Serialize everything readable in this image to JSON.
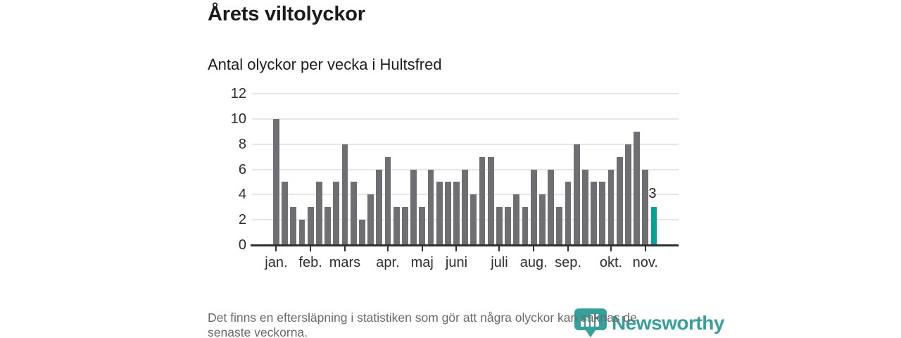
{
  "header": {
    "title": "Årets viltolyckor",
    "subtitle": "Antal olyckor per vecka i Hultsfred"
  },
  "footer": {
    "note": "Det finns en eftersläpning i statistiken som gör att några olyckor kan saknas de senaste veckorna."
  },
  "logo": {
    "name": "Newsworthy",
    "color": "#38a09c",
    "icon": "pin-with-bar-chart-icon"
  },
  "chart_data": {
    "type": "bar",
    "title": "Årets viltolyckor",
    "subtitle": "Antal olyckor per vecka i Hultsfred",
    "x_unit": "vecka",
    "values": [
      10,
      5,
      3,
      2,
      3,
      5,
      3,
      5,
      8,
      5,
      2,
      4,
      6,
      7,
      3,
      3,
      6,
      3,
      6,
      5,
      5,
      5,
      6,
      4,
      7,
      7,
      3,
      3,
      4,
      3,
      6,
      4,
      6,
      3,
      5,
      8,
      6,
      5,
      5,
      6,
      7,
      8,
      9,
      6,
      3
    ],
    "x_tick_labels": [
      "jan.",
      "feb.",
      "mars",
      "apr.",
      "maj",
      "juni",
      "juli",
      "aug.",
      "sep.",
      "okt.",
      "nov."
    ],
    "x_tick_indices": [
      0,
      4,
      8,
      13,
      17,
      21,
      26,
      30,
      34,
      39,
      43
    ],
    "y_ticks": [
      0,
      2,
      4,
      6,
      8,
      10,
      12
    ],
    "ylim": [
      0,
      12
    ],
    "grid": true,
    "legend": "none",
    "bar_color": "#6e6e73",
    "highlight_index": 44,
    "highlight_color": "#00a49b",
    "highlight_label": "3",
    "axis_color": "#2f2f2f",
    "grid_color": "#e6e6e6"
  }
}
